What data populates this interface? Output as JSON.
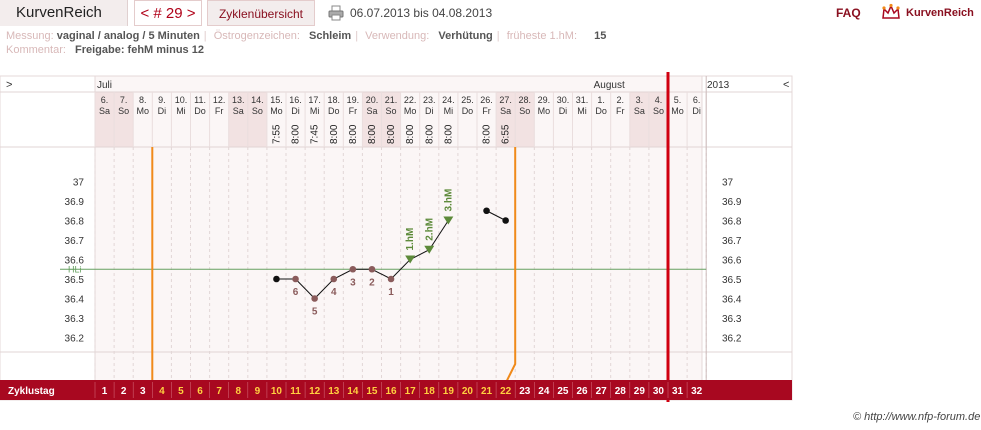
{
  "header": {
    "app_name": "KurvenReich",
    "cycle_label": "< # 29 >",
    "overview_label": "Zyklenübersicht",
    "date_range": "06.07.2013 bis 04.08.2013",
    "faq": "FAQ",
    "logo_text": "KurvenReich",
    "icons": {
      "print": "printer-icon",
      "logo": "crown-icon"
    }
  },
  "meta": {
    "measurement_key": "Messung:",
    "measurement_value": "vaginal / analog / 5 Minuten",
    "estrogen_key": "Östrogenzeichen:",
    "estrogen_value": "Schleim",
    "usage_key": "Verwendung:",
    "usage_value": "Verhütung",
    "earliest_key": "früheste 1.hM:",
    "earliest_value": "15",
    "comment_key": "Kommentar:",
    "comment_value": "Freigabe: fehM minus 12"
  },
  "footer": {
    "copyright": "© http://www.nfp-forum.de"
  },
  "chart_data": {
    "type": "line",
    "nav_left": ">",
    "nav_right": "<",
    "year": "2013",
    "months": [
      {
        "label": "Juli",
        "day_index": 0
      },
      {
        "label": "August",
        "day_index": 26
      }
    ],
    "day_numbers": [
      "6.",
      "7.",
      "8.",
      "9.",
      "10.",
      "11.",
      "12.",
      "13.",
      "14.",
      "15.",
      "16.",
      "17.",
      "18.",
      "19.",
      "20.",
      "21.",
      "22.",
      "23.",
      "24.",
      "25.",
      "26.",
      "27.",
      "28.",
      "29.",
      "30.",
      "31.",
      "1.",
      "2.",
      "3.",
      "4.",
      "5.",
      "6."
    ],
    "weekdays": [
      "Sa",
      "So",
      "Mo",
      "Di",
      "Mi",
      "Do",
      "Fr",
      "Sa",
      "So",
      "Mo",
      "Di",
      "Mi",
      "Do",
      "Fr",
      "Sa",
      "So",
      "Mo",
      "Di",
      "Mi",
      "Do",
      "Fr",
      "Sa",
      "So",
      "Mo",
      "Di",
      "Mi",
      "Do",
      "Fr",
      "Sa",
      "So",
      "Mo",
      "Di"
    ],
    "weekend_indices": [
      0,
      1,
      7,
      8,
      14,
      15,
      21,
      22,
      28,
      29
    ],
    "times": [
      "",
      "",
      "",
      "",
      "",
      "",
      "",
      "",
      "",
      "7:55",
      "8:00",
      "7:45",
      "8:00",
      "8:00",
      "8:00",
      "8:00",
      "8:00",
      "8:00",
      "8:00",
      "",
      "8:00",
      "6:55",
      "",
      "",
      "",
      "",
      "",
      "",
      "",
      "",
      "",
      ""
    ],
    "cycle_days": [
      "1",
      "2",
      "3",
      "4",
      "5",
      "6",
      "7",
      "8",
      "9",
      "10",
      "11",
      "12",
      "13",
      "14",
      "15",
      "16",
      "17",
      "18",
      "19",
      "20",
      "21",
      "22",
      "23",
      "24",
      "25",
      "26",
      "27",
      "28",
      "29",
      "30",
      "31",
      "32"
    ],
    "cycle_day_label": "Zyklustag",
    "y_ticks": [
      "37",
      "36.9",
      "36.8",
      "36.7",
      "36.6",
      "36.5",
      "36.4",
      "36.3",
      "36.2"
    ],
    "ylim": [
      36.1,
      37.1
    ],
    "cover_line": {
      "label": "HLi",
      "value": 36.55
    },
    "temperatures": [
      {
        "day": 10,
        "value": 36.5,
        "style": "normal"
      },
      {
        "day": 11,
        "value": 36.5,
        "style": "low",
        "label": "6"
      },
      {
        "day": 12,
        "value": 36.4,
        "style": "low",
        "label": "5"
      },
      {
        "day": 13,
        "value": 36.5,
        "style": "low",
        "label": "4"
      },
      {
        "day": 14,
        "value": 36.55,
        "style": "low",
        "label": "3"
      },
      {
        "day": 15,
        "value": 36.55,
        "style": "low",
        "label": "2"
      },
      {
        "day": 16,
        "value": 36.5,
        "style": "low",
        "label": "1"
      },
      {
        "day": 17,
        "value": 36.6,
        "style": "high",
        "label": "1.hM"
      },
      {
        "day": 18,
        "value": 36.65,
        "style": "high",
        "label": "2.hM"
      },
      {
        "day": 19,
        "value": 36.8,
        "style": "high",
        "label": "3.hM"
      },
      {
        "day": 21,
        "value": 36.85,
        "style": "normal"
      },
      {
        "day": 22,
        "value": 36.8,
        "style": "normal"
      }
    ],
    "segments": [
      [
        10,
        19
      ],
      [
        21,
        22
      ]
    ],
    "orange_lines_day": [
      3,
      22
    ],
    "today_day": 31,
    "colors": {
      "accent": "#a80820",
      "orange": "#f08a1a",
      "cover": "#66a060",
      "low_point": "#8a5b5b",
      "high_point": "#5d8a3a",
      "cycle_highlight": "#ffd040",
      "grid": "#e2d6d6",
      "weekend": "#f2e2e2",
      "bg": "#fbf6f6"
    }
  }
}
